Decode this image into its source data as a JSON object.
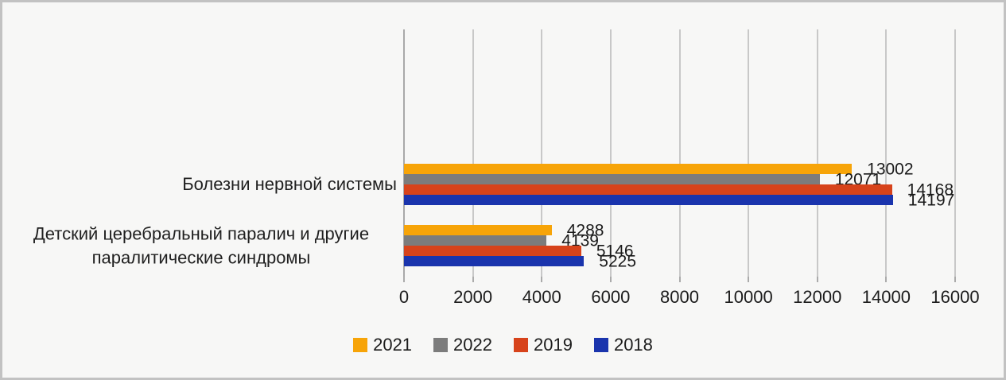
{
  "chart_data": {
    "type": "bar",
    "orientation": "horizontal",
    "title": "",
    "categories": [
      "Болезни нервной системы",
      "Детский церебральный паралич и другие паралитические синдромы"
    ],
    "series": [
      {
        "name": "2021",
        "color": "#F7A408",
        "values": [
          13002,
          4288
        ]
      },
      {
        "name": "2022",
        "color": "#7C7C7C",
        "values": [
          12071,
          4139
        ]
      },
      {
        "name": "2019",
        "color": "#D7431B",
        "values": [
          14168,
          5146
        ]
      },
      {
        "name": "2018",
        "color": "#1A34AD",
        "values": [
          14197,
          5225
        ]
      }
    ],
    "x_ticks": [
      "0",
      "2000",
      "4000",
      "6000",
      "8000",
      "10000",
      "12000",
      "14000",
      "16000"
    ],
    "xlim": [
      0,
      16000
    ],
    "grid": "vertical-only",
    "data_labels": "outside-end",
    "legend_position": "bottom-center"
  },
  "colors": {
    "background": "#F7F7F6",
    "border": "#C2C2C2",
    "gridline": "#C8C8C8",
    "axis_line": "#A9A9A9",
    "text": "#1F1F1F"
  }
}
